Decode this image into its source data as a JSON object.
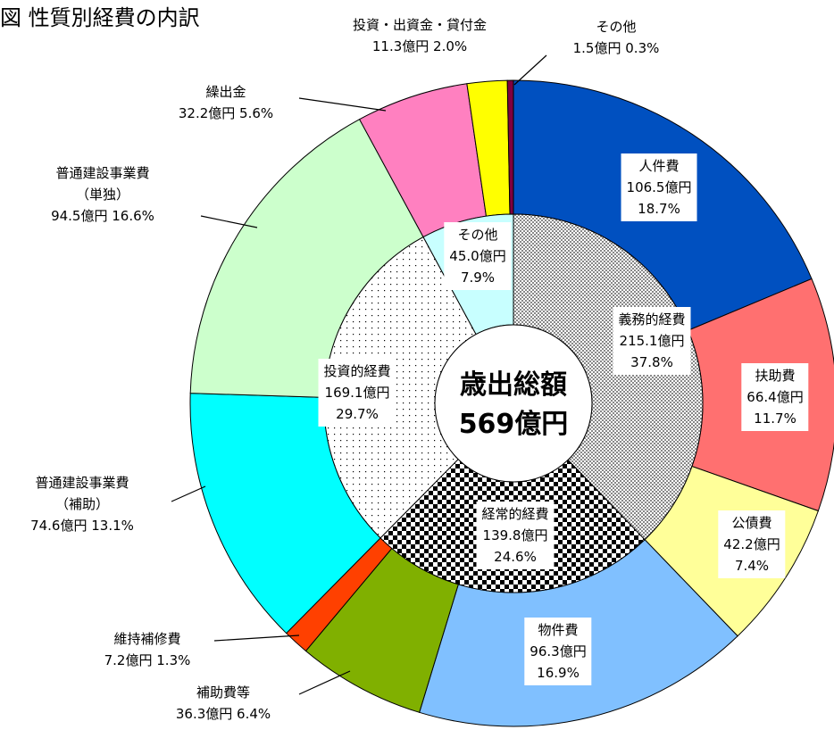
{
  "title": "図 性質別経費の内訳",
  "chart_data": {
    "type": "donut",
    "center": {
      "label": "歳出総額",
      "total": 569,
      "total_label": "569億円"
    },
    "outer": {
      "categories": [
        "人件費",
        "扶助費",
        "公債費",
        "物件費",
        "補助費等",
        "維持補修費",
        "普通建設事業費\n（補助）",
        "普通建設事業費\n（単独）",
        "繰出金",
        "投資・出資金・貸付金",
        "その他"
      ],
      "amounts": [
        106.5,
        66.4,
        42.2,
        96.3,
        36.3,
        7.2,
        74.6,
        94.5,
        32.2,
        11.3,
        1.5
      ],
      "amount_labels": [
        "106.5億円",
        "66.4億円",
        "42.2億円",
        "96.3億円",
        "36.3億円",
        "7.2億円",
        "74.6億円",
        "94.5億円",
        "32.2億円",
        "11.3億円",
        "1.5億円"
      ],
      "values": [
        18.7,
        11.7,
        7.4,
        16.9,
        6.4,
        1.3,
        13.1,
        16.6,
        5.6,
        2.0,
        0.3
      ],
      "value_labels": [
        "18.7%",
        "11.7%",
        "7.4%",
        "16.9%",
        "6.4%",
        "1.3%",
        "13.1%",
        "16.6%",
        "5.6%",
        "2.0%",
        "0.3%"
      ],
      "colors": [
        "#0050c0",
        "#ff7070",
        "#ffff99",
        "#80c0ff",
        "#80b000",
        "#ff4000",
        "#00ffff",
        "#ccffcc",
        "#ff80c0",
        "#ffff00",
        "#800040"
      ]
    },
    "inner": {
      "categories": [
        "義務的経費",
        "経常的経費",
        "投資的経費",
        "その他"
      ],
      "amounts": [
        215.1,
        139.8,
        169.1,
        45.0
      ],
      "amount_labels": [
        "215.1億円",
        "139.8億円",
        "169.1億円",
        "45.0億円"
      ],
      "values": [
        37.8,
        24.6,
        29.7,
        7.9
      ],
      "value_labels": [
        "37.8%",
        "24.6%",
        "29.7%",
        "7.9%"
      ],
      "patterns": [
        "dense-dots",
        "checker",
        "sparse-dots",
        "solid"
      ],
      "colors": [
        "#888888",
        "#000000",
        "#000000",
        "#c8ffff"
      ]
    }
  }
}
